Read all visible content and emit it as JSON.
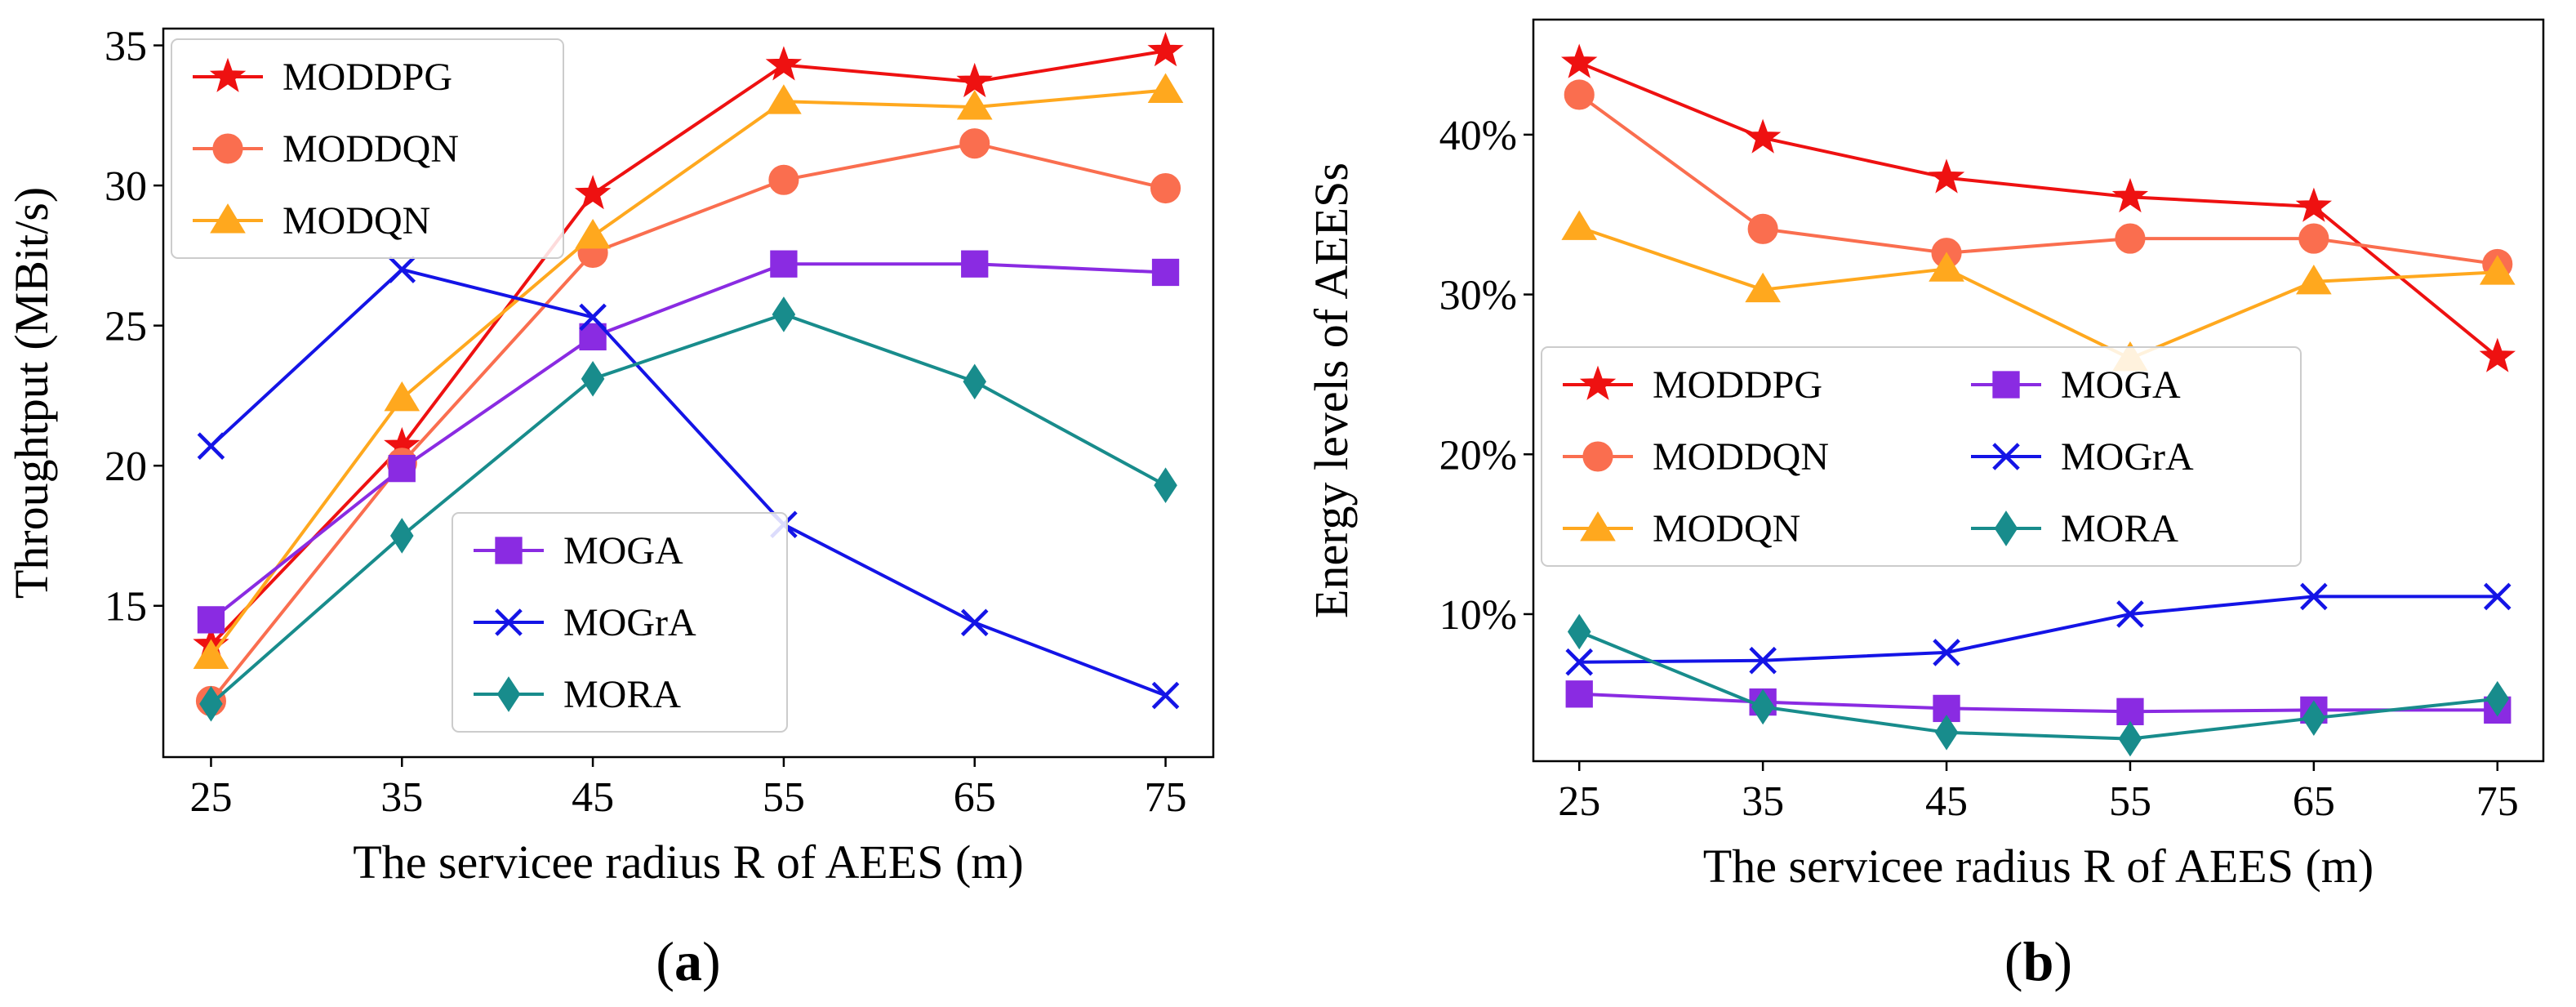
{
  "chart_data": [
    {
      "id": "a",
      "type": "line",
      "caption": "a",
      "xlabel": "The servicee radius R of AEES (m)",
      "ylabel": "Throughtput (MBit/s)",
      "x": [
        25,
        35,
        45,
        55,
        65,
        75
      ],
      "xticks": [
        "25",
        "35",
        "45",
        "55",
        "65",
        "75"
      ],
      "xlim": [
        22.5,
        77.5
      ],
      "yticks": [
        15,
        20,
        25,
        30,
        35
      ],
      "ytick_labels": [
        "15",
        "20",
        "25",
        "30",
        "35"
      ],
      "ylim": [
        9.6,
        35.6
      ],
      "y_is_percent": false,
      "grid": false,
      "legends": [
        {
          "placement": "top-left",
          "columns": 1,
          "series": [
            "MODDPG",
            "MODDQN",
            "MODQN"
          ]
        },
        {
          "placement": "lower-center",
          "columns": 1,
          "series": [
            "MOGA",
            "MOGrA",
            "MORA"
          ]
        }
      ],
      "series": [
        {
          "name": "MODDPG",
          "marker": "star",
          "color": "#ee1111",
          "values": [
            13.6,
            20.7,
            29.7,
            34.3,
            33.7,
            34.8
          ]
        },
        {
          "name": "MODDQN",
          "marker": "circle",
          "color": "#fa6e4f",
          "values": [
            11.6,
            20.1,
            27.6,
            30.2,
            31.5,
            29.9
          ]
        },
        {
          "name": "MODQN",
          "marker": "triangle",
          "color": "#ffa81e",
          "values": [
            13.2,
            22.4,
            28.2,
            33.0,
            32.8,
            33.4
          ]
        },
        {
          "name": "MOGA",
          "marker": "square",
          "color": "#8a2be2",
          "values": [
            14.5,
            19.9,
            24.6,
            27.2,
            27.2,
            26.9
          ]
        },
        {
          "name": "MOGrA",
          "marker": "x",
          "color": "#1414e6",
          "values": [
            20.7,
            27.0,
            25.3,
            17.9,
            14.4,
            11.8
          ]
        },
        {
          "name": "MORA",
          "marker": "diamond",
          "color": "#188c8c",
          "values": [
            11.5,
            17.5,
            23.1,
            25.4,
            23.0,
            19.3
          ]
        }
      ]
    },
    {
      "id": "b",
      "type": "line",
      "caption": "b",
      "xlabel": "The servicee radius R of AEES (m)",
      "ylabel": "Energy levels of AEESs",
      "x": [
        25,
        35,
        45,
        55,
        65,
        75
      ],
      "xticks": [
        "25",
        "35",
        "45",
        "55",
        "65",
        "75"
      ],
      "xlim": [
        22.5,
        77.5
      ],
      "yticks": [
        10,
        20,
        30,
        40
      ],
      "ytick_labels": [
        "10%",
        "20%",
        "30%",
        "40%"
      ],
      "ylim": [
        0.8,
        47.2
      ],
      "y_is_percent": true,
      "grid": false,
      "legends": [
        {
          "placement": "center-left",
          "columns": 2,
          "series": [
            "MODDPG",
            "MODDQN",
            "MODQN",
            "MOGA",
            "MOGrA",
            "MORA"
          ]
        }
      ],
      "series": [
        {
          "name": "MODDPG",
          "marker": "star",
          "color": "#ee1111",
          "values": [
            44.5,
            39.8,
            37.3,
            36.1,
            35.5,
            26.1
          ]
        },
        {
          "name": "MODDQN",
          "marker": "circle",
          "color": "#fa6e4f",
          "values": [
            42.5,
            34.1,
            32.6,
            33.5,
            33.5,
            31.9
          ]
        },
        {
          "name": "MODQN",
          "marker": "triangle",
          "color": "#ffa81e",
          "values": [
            34.2,
            30.3,
            31.6,
            26.0,
            30.8,
            31.4
          ]
        },
        {
          "name": "MOGA",
          "marker": "square",
          "color": "#8a2be2",
          "values": [
            5.0,
            4.5,
            4.1,
            3.9,
            4.0,
            4.0
          ]
        },
        {
          "name": "MOGrA",
          "marker": "x",
          "color": "#1414e6",
          "values": [
            7.0,
            7.1,
            7.6,
            10.0,
            11.1,
            11.1
          ]
        },
        {
          "name": "MORA",
          "marker": "diamond",
          "color": "#188c8c",
          "values": [
            8.9,
            4.2,
            2.6,
            2.2,
            3.5,
            4.7
          ]
        }
      ]
    }
  ]
}
